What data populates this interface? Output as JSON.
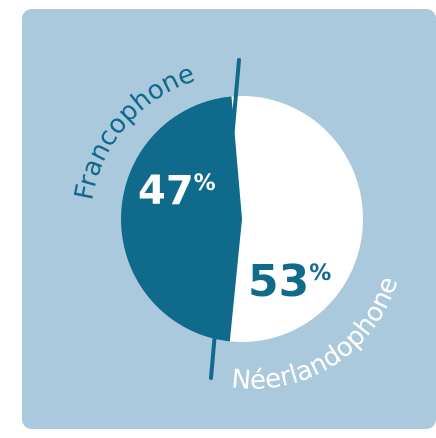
{
  "chart_data": {
    "type": "pie",
    "slices": [
      {
        "label": "Francophone",
        "value": 47,
        "value_label": "47",
        "unit": "%",
        "color": "#0f6a8c"
      },
      {
        "label": "Néerlandophone",
        "value": 53,
        "value_label": "53",
        "unit": "%",
        "color": "#ffffff"
      }
    ]
  },
  "colors": {
    "background": "#abc9dc",
    "francophone": "#0f6a8c",
    "neerlandophone": "#ffffff",
    "divider": "#0f6a8c"
  }
}
